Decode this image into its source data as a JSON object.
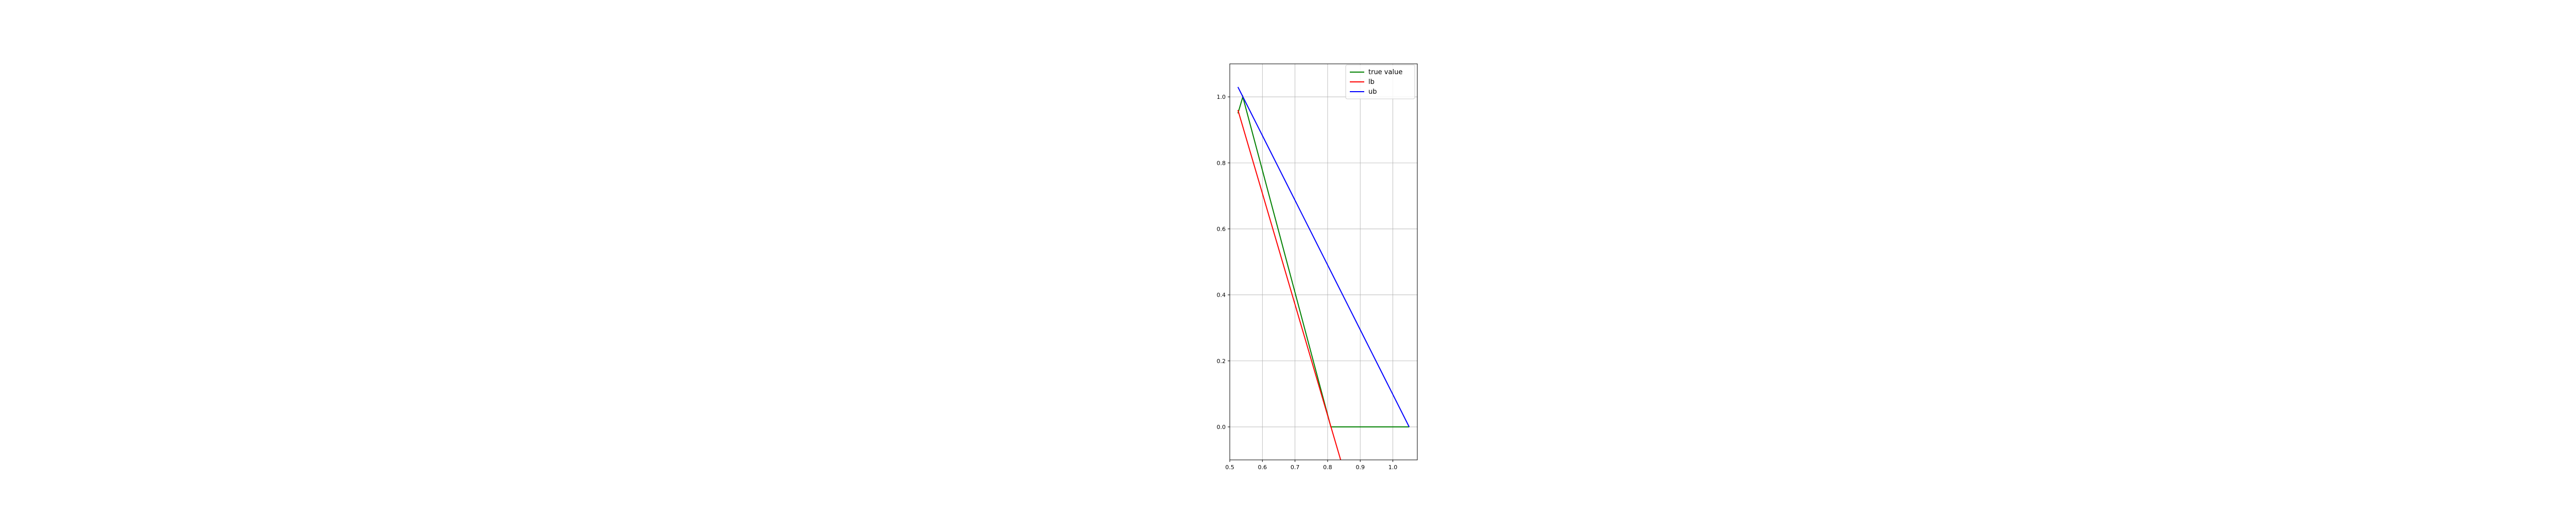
{
  "chart_data": {
    "type": "line",
    "title": "",
    "xlabel": "",
    "ylabel": "",
    "xlim": [
      0.5,
      1.075
    ],
    "ylim": [
      -0.1,
      1.1
    ],
    "xticks": [
      0.5,
      0.6,
      0.7,
      0.8,
      0.9,
      1.0
    ],
    "yticks": [
      0.0,
      0.2,
      0.4,
      0.6,
      0.8,
      1.0
    ],
    "xtick_labels": [
      "0.5",
      "0.6",
      "0.7",
      "0.8",
      "0.9",
      "1.0"
    ],
    "ytick_labels": [
      "0.0",
      "0.2",
      "0.4",
      "0.6",
      "0.8",
      "1.0"
    ],
    "grid": true,
    "legend_position": "top-right",
    "series": [
      {
        "name": "true value",
        "color": "#008000",
        "x": [
          0.525,
          0.54,
          0.81,
          1.05
        ],
        "y": [
          0.95,
          1.0,
          0.0,
          0.0
        ]
      },
      {
        "name": "lb",
        "color": "#ff0000",
        "x": [
          0.525,
          0.84
        ],
        "y": [
          0.96,
          -0.1
        ]
      },
      {
        "name": "ub",
        "color": "#0000ff",
        "x": [
          0.525,
          1.05
        ],
        "y": [
          1.03,
          0.0
        ]
      }
    ]
  }
}
